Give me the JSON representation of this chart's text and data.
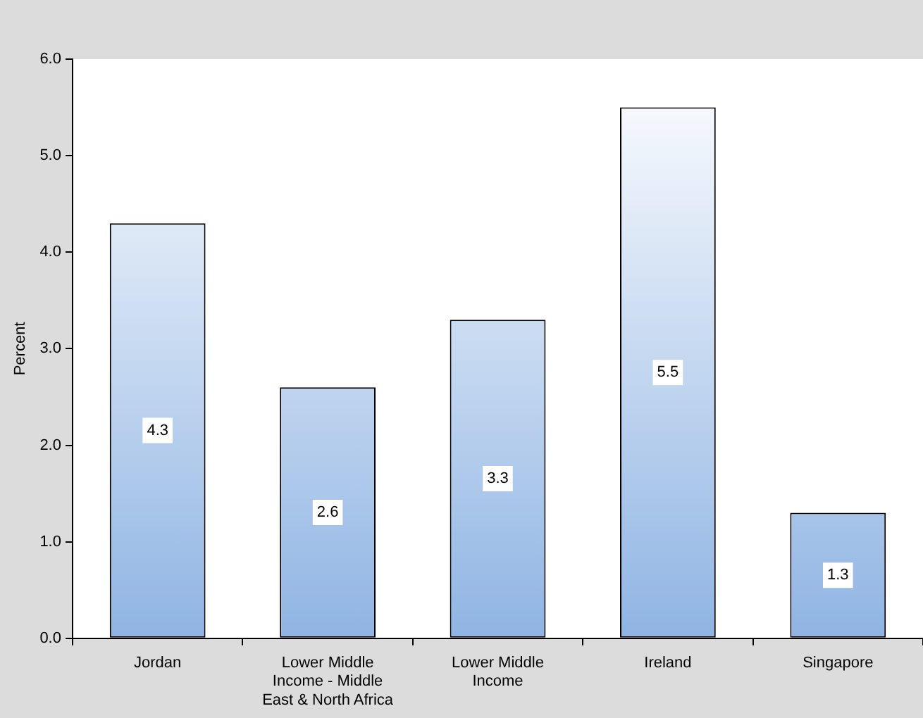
{
  "chart_data": {
    "type": "bar",
    "ylabel": "Percent",
    "categories": [
      "Jordan",
      "Lower Middle Income - Middle East & North Africa",
      "Lower Middle Income",
      "Ireland",
      "Singapore"
    ],
    "values": [
      4.3,
      2.6,
      3.3,
      5.5,
      1.3
    ],
    "color": "#8fb4e3",
    "ylim": [
      0,
      6
    ],
    "yticks": [
      {
        "value": 0,
        "label": "0.0"
      },
      {
        "value": 1,
        "label": "1.0"
      },
      {
        "value": 2,
        "label": "2.0"
      },
      {
        "value": 3,
        "label": "3.0"
      },
      {
        "value": 4,
        "label": "4.0"
      },
      {
        "value": 5,
        "label": "5.0"
      },
      {
        "value": 6,
        "label": "6.0"
      }
    ],
    "grid": false,
    "legend": false,
    "data_labels": true
  }
}
